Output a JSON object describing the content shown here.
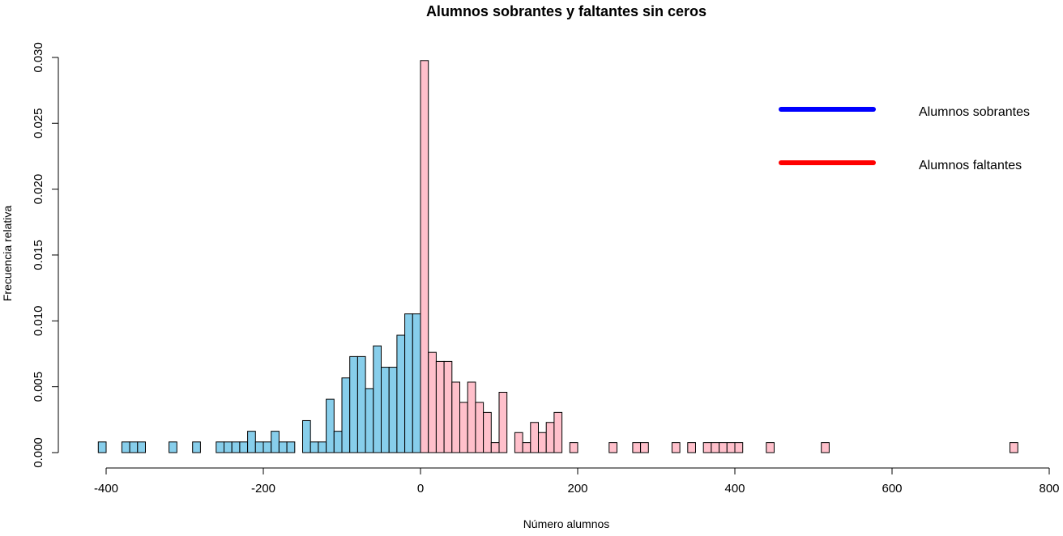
{
  "chart_data": {
    "type": "bar",
    "title": "Alumnos sobrantes y faltantes sin ceros",
    "xlabel": "Número alumnos",
    "ylabel": "Frecuencia relativa",
    "xlim": [
      -400,
      800
    ],
    "ylim": [
      0,
      0.03
    ],
    "x_ticks": [
      "-400",
      "-200",
      "0",
      "200",
      "400",
      "600",
      "800"
    ],
    "y_ticks": [
      "0.000",
      "0.005",
      "0.010",
      "0.015",
      "0.020",
      "0.025",
      "0.030"
    ],
    "bin_width": 10,
    "grid": false,
    "legend_position": "top-right",
    "series": [
      {
        "name": "Alumnos sobrantes",
        "bar_color": "#87ceeb",
        "legend_color": "#0000ff",
        "bins": [
          {
            "x0": -410,
            "y": 0.00081
          },
          {
            "x0": -380,
            "y": 0.00081
          },
          {
            "x0": -370,
            "y": 0.00081
          },
          {
            "x0": -360,
            "y": 0.00081
          },
          {
            "x0": -320,
            "y": 0.00081
          },
          {
            "x0": -290,
            "y": 0.00081
          },
          {
            "x0": -260,
            "y": 0.00081
          },
          {
            "x0": -250,
            "y": 0.00081
          },
          {
            "x0": -240,
            "y": 0.00081
          },
          {
            "x0": -230,
            "y": 0.00081
          },
          {
            "x0": -220,
            "y": 0.00162
          },
          {
            "x0": -210,
            "y": 0.00081
          },
          {
            "x0": -200,
            "y": 0.00081
          },
          {
            "x0": -190,
            "y": 0.00162
          },
          {
            "x0": -180,
            "y": 0.00081
          },
          {
            "x0": -170,
            "y": 0.00081
          },
          {
            "x0": -150,
            "y": 0.00243
          },
          {
            "x0": -140,
            "y": 0.00081
          },
          {
            "x0": -130,
            "y": 0.00081
          },
          {
            "x0": -120,
            "y": 0.00405
          },
          {
            "x0": -110,
            "y": 0.00162
          },
          {
            "x0": -100,
            "y": 0.00567
          },
          {
            "x0": -90,
            "y": 0.00729
          },
          {
            "x0": -80,
            "y": 0.00729
          },
          {
            "x0": -70,
            "y": 0.00486
          },
          {
            "x0": -60,
            "y": 0.0081
          },
          {
            "x0": -50,
            "y": 0.00648
          },
          {
            "x0": -40,
            "y": 0.00648
          },
          {
            "x0": -30,
            "y": 0.00891
          },
          {
            "x0": -20,
            "y": 0.01053
          },
          {
            "x0": -10,
            "y": 0.01053
          }
        ]
      },
      {
        "name": "Alumnos faltantes",
        "bar_color": "#ffc0cb",
        "legend_color": "#ff0000",
        "bins": [
          {
            "x0": 0,
            "y": 0.02976
          },
          {
            "x0": 10,
            "y": 0.00761
          },
          {
            "x0": 20,
            "y": 0.00692
          },
          {
            "x0": 30,
            "y": 0.00692
          },
          {
            "x0": 40,
            "y": 0.00535
          },
          {
            "x0": 50,
            "y": 0.00381
          },
          {
            "x0": 60,
            "y": 0.00535
          },
          {
            "x0": 70,
            "y": 0.00381
          },
          {
            "x0": 80,
            "y": 0.00305
          },
          {
            "x0": 90,
            "y": 0.00076
          },
          {
            "x0": 100,
            "y": 0.00458
          },
          {
            "x0": 120,
            "y": 0.00152
          },
          {
            "x0": 130,
            "y": 0.00076
          },
          {
            "x0": 140,
            "y": 0.00229
          },
          {
            "x0": 150,
            "y": 0.00152
          },
          {
            "x0": 160,
            "y": 0.00229
          },
          {
            "x0": 170,
            "y": 0.00305
          },
          {
            "x0": 190,
            "y": 0.00076
          },
          {
            "x0": 240,
            "y": 0.00076
          },
          {
            "x0": 270,
            "y": 0.00076
          },
          {
            "x0": 280,
            "y": 0.00076
          },
          {
            "x0": 320,
            "y": 0.00076
          },
          {
            "x0": 340,
            "y": 0.00076
          },
          {
            "x0": 360,
            "y": 0.00076
          },
          {
            "x0": 370,
            "y": 0.00076
          },
          {
            "x0": 380,
            "y": 0.00076
          },
          {
            "x0": 390,
            "y": 0.00076
          },
          {
            "x0": 400,
            "y": 0.00076
          },
          {
            "x0": 440,
            "y": 0.00076
          },
          {
            "x0": 510,
            "y": 0.00076
          },
          {
            "x0": 750,
            "y": 0.00076
          }
        ]
      }
    ]
  }
}
